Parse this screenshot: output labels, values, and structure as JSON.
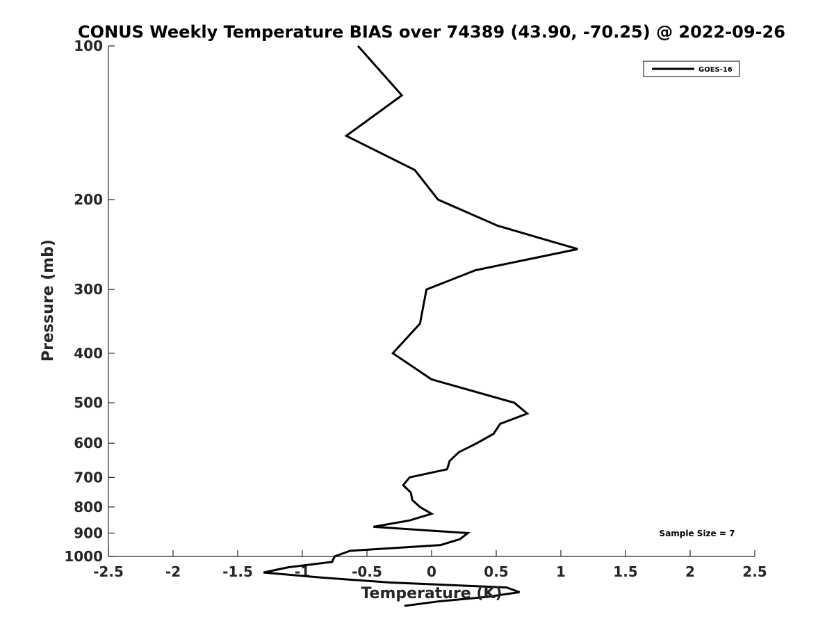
{
  "chart_data": {
    "type": "line",
    "title": "CONUS Weekly Temperature BIAS over 74389 (43.90, -70.25) @ 2022-09-26",
    "xlabel": "Temperature (K)",
    "ylabel": "Pressure (mb)",
    "xlim": [
      -2.5,
      2.5
    ],
    "ylim": [
      100,
      1000
    ],
    "y_scale": "log",
    "y_reversed": true,
    "x_ticks": [
      "-2.5",
      "-2",
      "-1.5",
      "-1",
      "-0.5",
      "0",
      "0.5",
      "1",
      "1.5",
      "2",
      "2.5"
    ],
    "x_tick_values": [
      -2.5,
      -2,
      -1.5,
      -1,
      -0.5,
      0,
      0.5,
      1,
      1.5,
      2,
      2.5
    ],
    "y_ticks": [
      "100",
      "200",
      "300",
      "400",
      "500",
      "600",
      "700",
      "800",
      "900",
      "1000"
    ],
    "y_tick_values": [
      100,
      200,
      300,
      400,
      500,
      600,
      700,
      800,
      900,
      1000
    ],
    "grid": false,
    "legend_position": "top-right",
    "annotation": "Sample Size = 7",
    "series": [
      {
        "name": "GOES-16",
        "color": "#000000",
        "points": [
          {
            "t": -0.57,
            "p": 100
          },
          {
            "t": -0.23,
            "p": 125
          },
          {
            "t": -0.66,
            "p": 150
          },
          {
            "t": -0.13,
            "p": 175
          },
          {
            "t": 0.05,
            "p": 200
          },
          {
            "t": 0.51,
            "p": 225
          },
          {
            "t": 1.13,
            "p": 250
          },
          {
            "t": 0.34,
            "p": 275
          },
          {
            "t": -0.04,
            "p": 300
          },
          {
            "t": -0.09,
            "p": 350
          },
          {
            "t": -0.3,
            "p": 400
          },
          {
            "t": 0.0,
            "p": 450
          },
          {
            "t": 0.64,
            "p": 500
          },
          {
            "t": 0.74,
            "p": 525
          },
          {
            "t": 0.53,
            "p": 550
          },
          {
            "t": 0.48,
            "p": 575
          },
          {
            "t": 0.35,
            "p": 600
          },
          {
            "t": 0.21,
            "p": 625
          },
          {
            "t": 0.14,
            "p": 650
          },
          {
            "t": 0.12,
            "p": 675
          },
          {
            "t": -0.17,
            "p": 700
          },
          {
            "t": -0.22,
            "p": 725
          },
          {
            "t": -0.16,
            "p": 750
          },
          {
            "t": -0.15,
            "p": 775
          },
          {
            "t": -0.09,
            "p": 800
          },
          {
            "t": 0.0,
            "p": 825
          },
          {
            "t": -0.17,
            "p": 850
          },
          {
            "t": -0.45,
            "p": 875
          },
          {
            "t": 0.28,
            "p": 900
          },
          {
            "t": 0.22,
            "p": 925
          },
          {
            "t": 0.07,
            "p": 950
          },
          {
            "t": -0.63,
            "p": 975
          },
          {
            "t": -0.75,
            "p": 1000
          },
          {
            "t": -0.77,
            "p": 1025
          },
          {
            "t": -1.11,
            "p": 1050
          },
          {
            "t": -1.3,
            "p": 1075
          },
          {
            "t": -0.85,
            "p": 1100
          },
          {
            "t": -0.32,
            "p": 1125
          },
          {
            "t": 0.58,
            "p": 1150
          },
          {
            "t": 0.68,
            "p": 1175
          },
          {
            "t": 0.43,
            "p": 1200
          },
          {
            "t": 0.05,
            "p": 1225
          },
          {
            "t": -0.21,
            "p": 1250
          }
        ]
      }
    ]
  }
}
